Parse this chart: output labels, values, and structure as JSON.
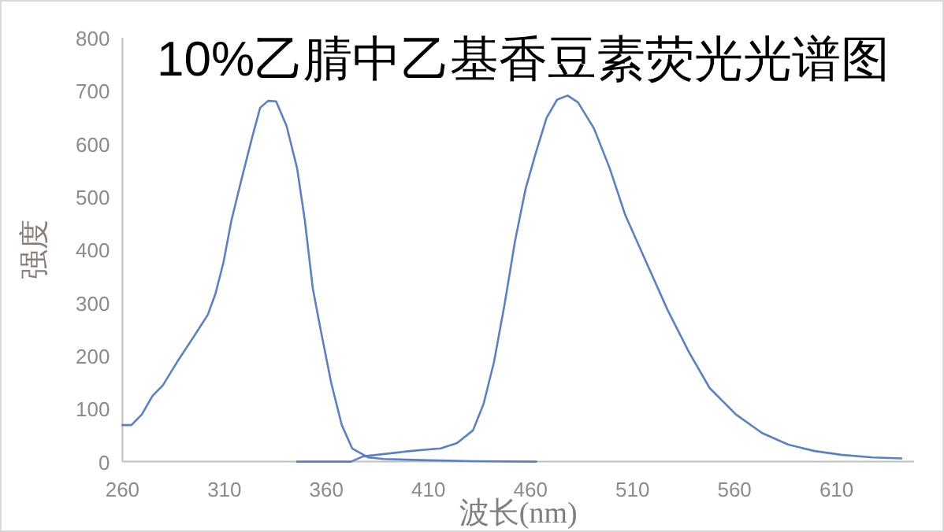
{
  "chart_data": {
    "type": "line",
    "title": "10%乙腈中乙基香豆素荧光光谱图",
    "xlabel": "波长(nm)",
    "ylabel": "强度",
    "xlim": [
      260,
      648
    ],
    "xticks": [
      260,
      310,
      360,
      410,
      460,
      510,
      560,
      610
    ],
    "ylim": [
      0,
      800
    ],
    "yticks": [
      0,
      100,
      200,
      300,
      400,
      500,
      600,
      700,
      800
    ],
    "grid": false,
    "marker": "none",
    "line_style": "solid",
    "series": [
      {
        "color": "#5b80c4",
        "x": [
          260,
          264.4,
          269.5,
          274.7,
          279.8,
          287.6,
          295.3,
          301.8,
          305.6,
          309.5,
          313.4,
          318.5,
          323.7,
          327.5,
          331.4,
          335.3,
          340.4,
          345.6,
          349.4,
          353.3,
          357.2,
          362.3,
          367.5,
          372.6,
          380.4,
          388.1,
          406,
          432,
          462.8
        ],
        "values": [
          69,
          69,
          89,
          124,
          144,
          193,
          238,
          277,
          317,
          376,
          455,
          535,
          614,
          668,
          681,
          680,
          634,
          554,
          455,
          327,
          248,
          149,
          69,
          25,
          8,
          5,
          3,
          1,
          0
        ]
      },
      {
        "color": "#5b80c4",
        "x": [
          345.6,
          372,
          378,
          401,
          416,
          424,
          431.8,
          437,
          442.1,
          447.3,
          452.4,
          457.6,
          462.7,
          467.9,
          473,
          478.2,
          483.3,
          491.1,
          498.8,
          506.5,
          516.8,
          527.1,
          537.5,
          547.8,
          560.7,
          573.5,
          586.4,
          599.3,
          612.2,
          627.7,
          641.8
        ],
        "values": [
          0,
          0,
          10,
          20,
          25,
          35,
          59,
          109,
          188,
          297,
          416,
          515,
          584,
          649,
          683,
          691,
          678,
          629,
          554,
          465,
          376,
          287,
          208,
          139,
          89,
          54,
          32,
          20,
          13,
          8,
          6
        ]
      }
    ]
  }
}
